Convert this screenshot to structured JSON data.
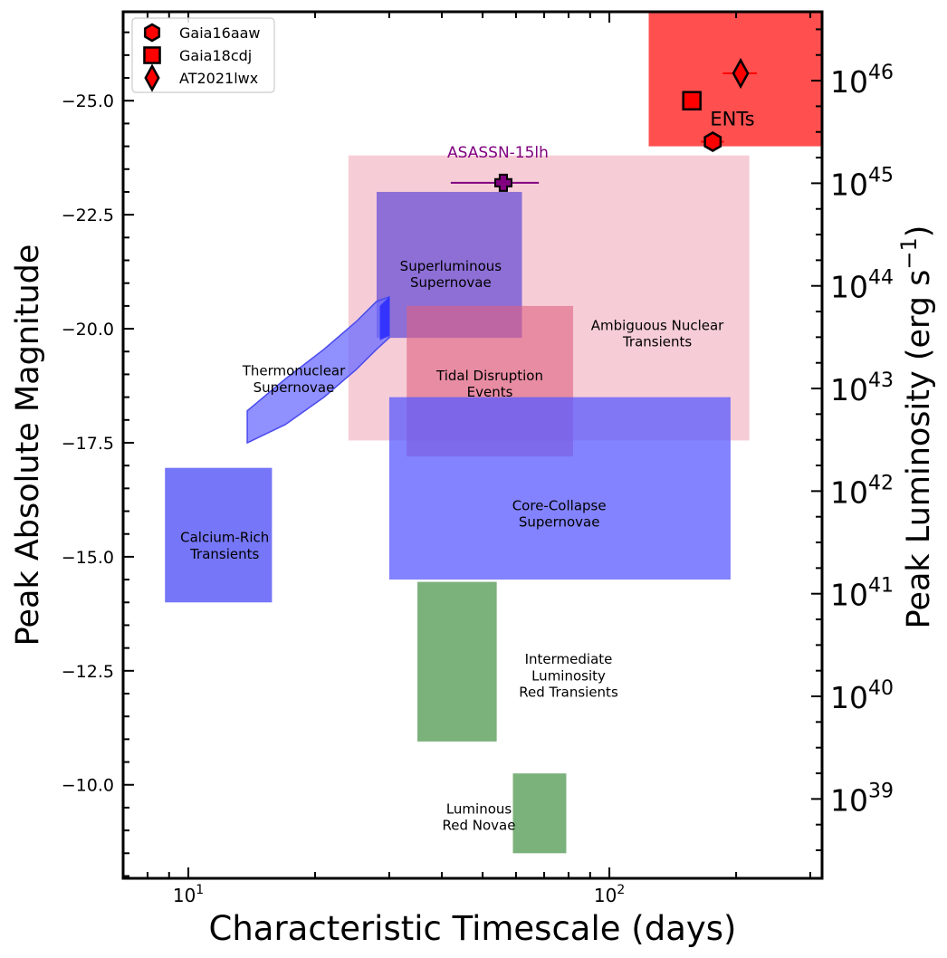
{
  "chart_data": {
    "type": "scatter",
    "xlabel": "Characteristic Timescale (days)",
    "ylabel": "Peak Absolute Magnitude",
    "y2label_main": "Peak Luminosity (erg s",
    "y2label_sup": "−1",
    "y2label_close": ")",
    "xscale": "log",
    "xlim": [
      7.0,
      320
    ],
    "ylim": [
      -7.95,
      -26.95
    ],
    "yticks": [
      -25.0,
      -22.5,
      -20.0,
      -17.5,
      -15.0,
      -12.5,
      -10.0
    ],
    "ytick_labels": [
      "−25.0",
      "−22.5",
      "−20.0",
      "−17.5",
      "−15.0",
      "−12.5",
      "−10.0"
    ],
    "xticks": [
      10,
      100
    ],
    "y2ticks": [
      {
        "base": "10",
        "exp": "46",
        "mag": -25.44
      },
      {
        "base": "10",
        "exp": "45",
        "mag": -23.19
      },
      {
        "base": "10",
        "exp": "44",
        "mag": -20.94
      },
      {
        "base": "10",
        "exp": "43",
        "mag": -18.69
      },
      {
        "base": "10",
        "exp": "42",
        "mag": -16.44
      },
      {
        "base": "10",
        "exp": "41",
        "mag": -14.19
      },
      {
        "base": "10",
        "exp": "40",
        "mag": -11.94
      },
      {
        "base": "10",
        "exp": "39",
        "mag": -9.69
      }
    ],
    "regions": [
      {
        "name": "Ambiguous Nuclear Transients",
        "lines": [
          "Ambiguous Nuclear",
          "Transients"
        ],
        "x": [
          24,
          215
        ],
        "y": [
          -17.55,
          -23.8
        ],
        "color": "#f2b8c6",
        "opacity": 0.7,
        "label_at": [
          130,
          -19.9
        ]
      },
      {
        "name": "Superluminous Supernovae",
        "lines": [
          "Superluminous",
          "Supernovae"
        ],
        "x": [
          28,
          62
        ],
        "y": [
          -19.8,
          -23.0
        ],
        "color": "#6a4fd6",
        "opacity": 0.75,
        "label_at": [
          42,
          -21.2
        ]
      },
      {
        "name": "Tidal Disruption Events",
        "lines": [
          "Tidal Disruption",
          "Events"
        ],
        "x": [
          33,
          82
        ],
        "y": [
          -17.2,
          -20.5
        ],
        "color": "#e06080",
        "opacity": 0.6,
        "label_at": [
          52,
          -18.8
        ]
      },
      {
        "name": "Core-Collapse Supernovae",
        "lines": [
          "Core-Collapse",
          "Supernovae"
        ],
        "x": [
          30,
          194
        ],
        "y": [
          -14.5,
          -18.5
        ],
        "color": "#5a5aff",
        "opacity": 0.75,
        "label_at": [
          76,
          -15.95
        ]
      },
      {
        "name": "Calcium-Rich Transients",
        "lines": [
          "Calcium-Rich",
          "Transients"
        ],
        "x": [
          8.8,
          15.8
        ],
        "y": [
          -14.0,
          -16.95
        ],
        "color": "#4848f5",
        "opacity": 0.75,
        "label_at": [
          12.2,
          -15.25
        ]
      },
      {
        "name": "Intermediate Luminosity Red Transients",
        "lines": [
          "Intermediate",
          "Luminosity",
          "Red Transients"
        ],
        "x": [
          35,
          54
        ],
        "y": [
          -10.95,
          -14.45
        ],
        "color": "#5a9e5a",
        "opacity": 0.8,
        "label_at": [
          80,
          -12.4
        ]
      },
      {
        "name": "Luminous Red Novae",
        "lines": [
          "Luminous",
          "Red Novae"
        ],
        "x": [
          59,
          79
        ],
        "y": [
          -8.5,
          -10.25
        ],
        "color": "#5a9e5a",
        "opacity": 0.8,
        "label_at": [
          49,
          -9.3
        ]
      },
      {
        "name": "ENTs",
        "lines": [],
        "x": [
          124,
          320
        ],
        "y": [
          -24.0,
          -26.95
        ],
        "color": "#ff3030",
        "opacity": 0.85,
        "label_at": [
          0,
          0
        ]
      }
    ],
    "thermonuclear_band": {
      "name": "Thermonuclear Supernovae",
      "lines": [
        "Thermonuclear",
        "Supernovae"
      ],
      "label_at": [
        17.8,
        -18.9
      ],
      "color": "#6b6bff",
      "upper": [
        [
          13.8,
          -18.2
        ],
        [
          17,
          -18.9
        ],
        [
          21,
          -19.55
        ],
        [
          25,
          -20.15
        ],
        [
          28,
          -20.6
        ],
        [
          30,
          -20.7
        ]
      ],
      "lower": [
        [
          30,
          -19.8
        ],
        [
          28,
          -19.55
        ],
        [
          25,
          -19.1
        ],
        [
          21,
          -18.5
        ],
        [
          17,
          -17.9
        ],
        [
          13.8,
          -17.5
        ]
      ]
    },
    "ent_label": {
      "text": "ENTs",
      "at": [
        196,
        -24.6
      ]
    },
    "series": [
      {
        "name": "Gaia16aaw",
        "marker": "hexagon",
        "x": 176,
        "y": -24.1,
        "xerr": [
          165,
          187
        ],
        "color": "#ff0000"
      },
      {
        "name": "Gaia18cdj",
        "marker": "square",
        "x": 157,
        "y": -25.0,
        "xerr": [
          151,
          163
        ],
        "color": "#ff0000"
      },
      {
        "name": "AT2021lwx",
        "marker": "diamond",
        "x": 205,
        "y": -25.6,
        "xerr": [
          186,
          224
        ],
        "color": "#ff0000"
      },
      {
        "name": "ASASSN-15lh",
        "marker": "plus",
        "x": 56,
        "y": -23.2,
        "xerr": [
          42,
          68
        ],
        "color": "#800080",
        "label": "ASASSN-15lh"
      }
    ],
    "legend": {
      "placement": "top-left",
      "entries": [
        "Gaia16aaw",
        "Gaia18cdj",
        "AT2021lwx"
      ]
    }
  }
}
